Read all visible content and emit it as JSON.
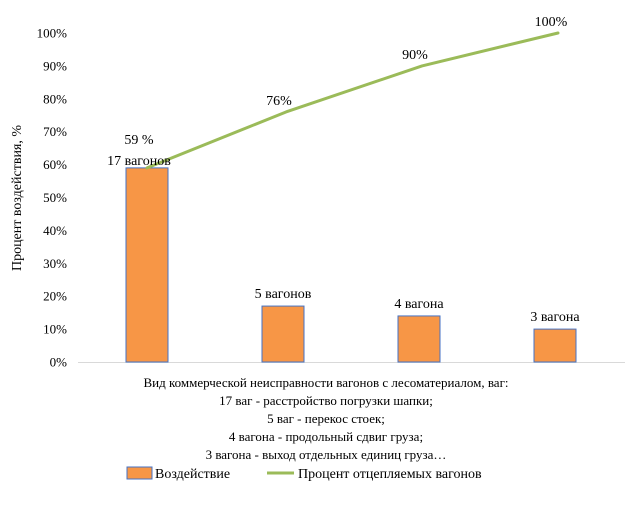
{
  "chart_data": {
    "type": "bar",
    "categories": [
      "17 вагонов",
      "5 вагонов",
      "4 вагона",
      "3 вагона"
    ],
    "series": [
      {
        "name": "Воздействие",
        "kind": "bar",
        "color": "#F79646",
        "border_color": "#4472C4",
        "values": [
          59,
          17,
          14,
          10
        ],
        "data_labels": [
          "59 %",
          "5 вагонов",
          "4 вагона",
          "3 вагона"
        ],
        "data_labels_2": [
          "17 вагонов",
          "",
          "",
          ""
        ]
      },
      {
        "name": "Процент отцепляемых вагонов",
        "kind": "line",
        "color": "#9BBB59",
        "values": [
          59,
          76,
          90,
          100
        ],
        "data_labels": [
          "",
          "76%",
          "90%",
          "100%"
        ]
      }
    ],
    "ylabel": "Процент воздействия, %",
    "xlabel_lines": [
      "Вид коммерческой неисправности вагонов с лесоматериалом, ваг:",
      "17 ваг - расстройство погрузки шапки;",
      "5 ваг - перекос стоек;",
      "4 вагона - продольный сдвиг груза;",
      "3 вагона - выход отдельных единиц груза…"
    ],
    "ylim": [
      0,
      100
    ],
    "yticks": [
      0,
      10,
      20,
      30,
      40,
      50,
      60,
      70,
      80,
      90,
      100
    ],
    "ytick_labels": [
      "0%",
      "10%",
      "20%",
      "30%",
      "40%",
      "50%",
      "60%",
      "70%",
      "80%",
      "90%",
      "100%"
    ],
    "grid": false,
    "legend_position": "bottom"
  }
}
